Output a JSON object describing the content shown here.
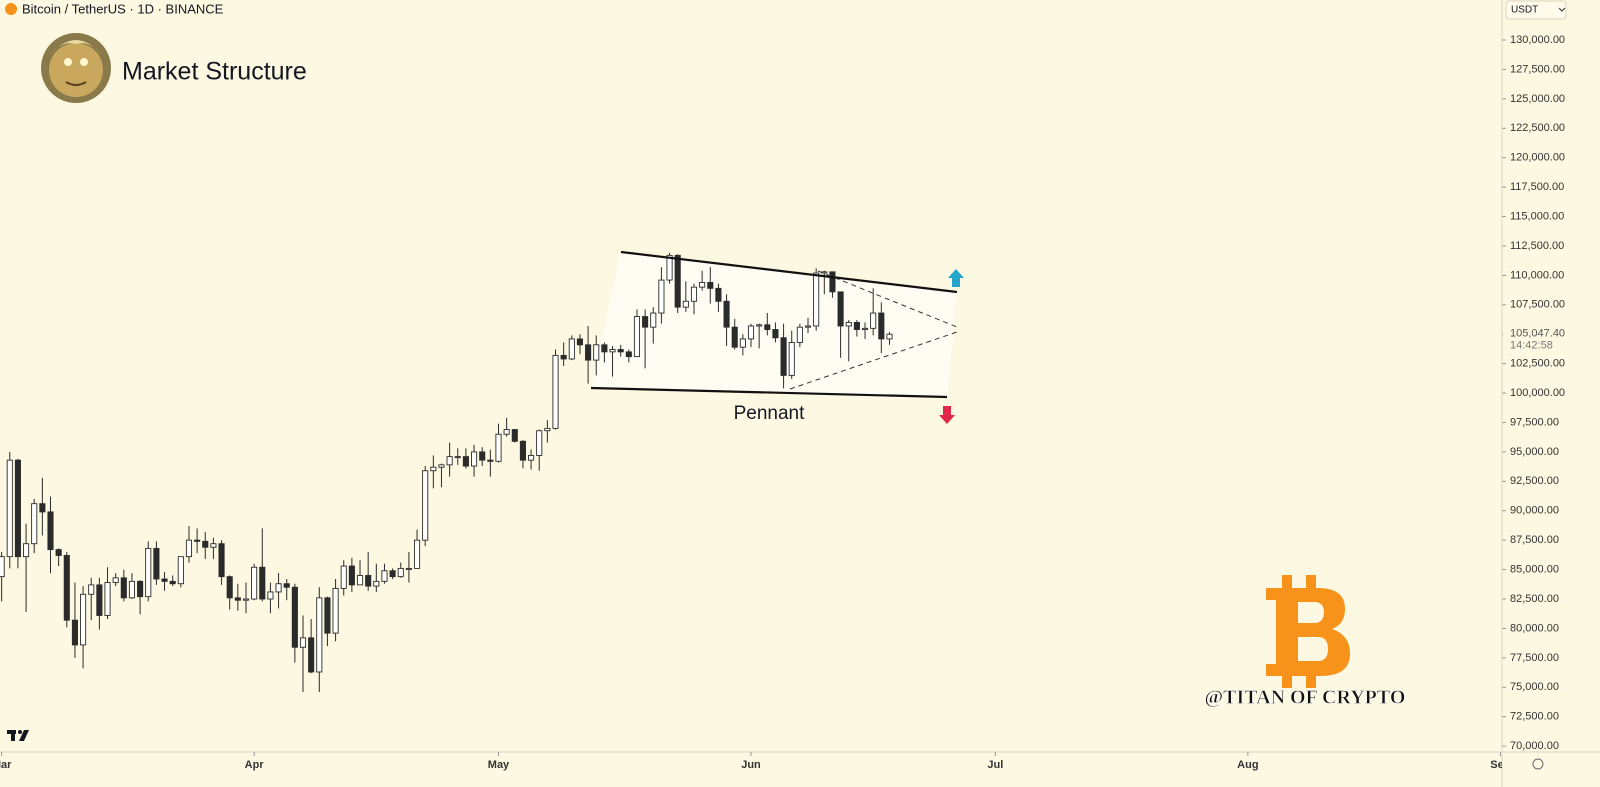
{
  "header": {
    "symbol": "Bitcoin / TetherUS · 1D · BINANCE",
    "currency": "USDT"
  },
  "chart_data": {
    "type": "candlestick",
    "title": "Market Structure",
    "annotation": "Pennant",
    "watermark": "@TITAN OF CRYPTO",
    "up_color": "#ffffff",
    "down_color": "#2b2b2b",
    "xlim": [
      -0.2,
      184.2
    ],
    "xticks": [
      {
        "value": 0,
        "label": "Mar"
      },
      {
        "value": 31,
        "label": "Apr"
      },
      {
        "value": 61,
        "label": "May"
      },
      {
        "value": 92,
        "label": "Jun"
      },
      {
        "value": 122,
        "label": "Jul"
      },
      {
        "value": 153,
        "label": "Aug"
      },
      {
        "value": 184,
        "label": "Sep"
      }
    ],
    "ylim": [
      69500,
      133400
    ],
    "yticks": [
      {
        "value": 70000,
        "label": "70,000.00"
      },
      {
        "value": 72500,
        "label": "72,500.00"
      },
      {
        "value": 75000,
        "label": "75,000.00"
      },
      {
        "value": 77500,
        "label": "77,500.00"
      },
      {
        "value": 80000,
        "label": "80,000.00"
      },
      {
        "value": 82500,
        "label": "82,500.00"
      },
      {
        "value": 85000,
        "label": "85,000.00"
      },
      {
        "value": 87500,
        "label": "87,500.00"
      },
      {
        "value": 90000,
        "label": "90,000.00"
      },
      {
        "value": 92500,
        "label": "92,500.00"
      },
      {
        "value": 95000,
        "label": "95,000.00"
      },
      {
        "value": 97500,
        "label": "97,500.00"
      },
      {
        "value": 100000,
        "label": "100,000.00"
      },
      {
        "value": 102500,
        "label": "102,500.00"
      },
      {
        "value": 105000,
        "label": "105,000.00"
      },
      {
        "value": 107500,
        "label": "107,500.00"
      },
      {
        "value": 110000,
        "label": "110,000.00"
      },
      {
        "value": 112500,
        "label": "112,500.00"
      },
      {
        "value": 115000,
        "label": "115,000.00"
      },
      {
        "value": 117500,
        "label": "117,500.00"
      },
      {
        "value": 120000,
        "label": "120,000.00"
      },
      {
        "value": 122500,
        "label": "122,500.00"
      },
      {
        "value": 125000,
        "label": "125,000.00"
      },
      {
        "value": 127500,
        "label": "127,500.00"
      },
      {
        "value": 130000,
        "label": "130,000.00"
      }
    ],
    "last_price": {
      "value": 105047.4,
      "label": "105,047.40"
    },
    "countdown": "14:42:58",
    "x": [
      0,
      1,
      2,
      3,
      4,
      5,
      6,
      7,
      8,
      9,
      10,
      11,
      12,
      13,
      14,
      15,
      16,
      17,
      18,
      19,
      20,
      21,
      22,
      23,
      24,
      25,
      26,
      27,
      28,
      29,
      30,
      31,
      32,
      33,
      34,
      35,
      36,
      37,
      38,
      39,
      40,
      41,
      42,
      43,
      44,
      45,
      46,
      47,
      48,
      49,
      50,
      51,
      52,
      53,
      54,
      55,
      56,
      57,
      58,
      59,
      60,
      61,
      62,
      63,
      64,
      65,
      66,
      67,
      68,
      69,
      70,
      71,
      72,
      73,
      74,
      75,
      76,
      77,
      78,
      79,
      80,
      81,
      82,
      83,
      84,
      85,
      86,
      87,
      88,
      89,
      90,
      91,
      92,
      93,
      94,
      95,
      96,
      97,
      98,
      99,
      100,
      101,
      102,
      103,
      104,
      105,
      106,
      107,
      108,
      109
    ],
    "open": [
      84400,
      86100,
      94300,
      86100,
      87200,
      90600,
      89900,
      86700,
      86200,
      80700,
      78600,
      82900,
      83700,
      81100,
      83900,
      84300,
      82600,
      84000,
      82700,
      86800,
      84200,
      84000,
      83800,
      86100,
      87500,
      87400,
      86900,
      87200,
      84400,
      82600,
      82400,
      82500,
      85200,
      82500,
      83100,
      83800,
      83500,
      78400,
      79200,
      76300,
      82600,
      79600,
      83400,
      85300,
      83700,
      84500,
      83600,
      84000,
      84900,
      84400,
      85100,
      85100,
      87500,
      93400,
      93700,
      93900,
      94600,
      94600,
      93800,
      95000,
      94300,
      94200,
      96500,
      96900,
      95900,
      94300,
      94700,
      96800,
      97000,
      103200,
      102900,
      104600,
      104100,
      102800,
      104100,
      103500,
      103700,
      103500,
      103100,
      106500,
      105600,
      106800,
      109600,
      111700,
      107300,
      107800,
      109000,
      109400,
      108900,
      107800,
      105600,
      103900,
      104600,
      105700,
      105800,
      105400,
      104700,
      101500,
      104300,
      105600,
      105700,
      110200,
      110300,
      108600,
      105700,
      106000,
      105400,
      105500,
      106800,
      104600
    ],
    "high": [
      86500,
      95000,
      94400,
      88900,
      91000,
      92800,
      91200,
      86800,
      86500,
      83900,
      83600,
      84300,
      84300,
      85200,
      84700,
      85000,
      84700,
      84100,
      87400,
      87400,
      84800,
      84500,
      86100,
      88700,
      88500,
      88200,
      87700,
      87500,
      84500,
      83800,
      83900,
      85500,
      88500,
      83900,
      84700,
      84200,
      83800,
      81100,
      80800,
      83500,
      82700,
      84200,
      85800,
      86000,
      85800,
      86500,
      85500,
      85500,
      85100,
      85600,
      86500,
      88400,
      93800,
      94700,
      94000,
      95800,
      95300,
      95300,
      95600,
      95400,
      95200,
      97400,
      97900,
      96900,
      96000,
      95200,
      96900,
      97700,
      103700,
      104300,
      104900,
      105000,
      105700,
      104900,
      104300,
      104000,
      104100,
      103700,
      107100,
      107100,
      107300,
      110700,
      111900,
      111800,
      109500,
      109300,
      110400,
      110700,
      109300,
      108400,
      106300,
      105000,
      105900,
      105900,
      106800,
      106000,
      105900,
      105300,
      105900,
      106400,
      110600,
      110400,
      110300,
      108600,
      106200,
      106200,
      106000,
      108900,
      107700,
      105200
    ],
    "low": [
      82300,
      85100,
      85100,
      81400,
      86400,
      87900,
      84700,
      85300,
      80100,
      77500,
      76600,
      80700,
      79900,
      80800,
      83600,
      82300,
      82500,
      81200,
      82300,
      83700,
      83200,
      83600,
      83500,
      85600,
      86400,
      85900,
      85900,
      83700,
      81600,
      81500,
      81300,
      82400,
      82300,
      81300,
      81700,
      82400,
      77100,
      74600,
      76200,
      74600,
      78500,
      78900,
      82800,
      83100,
      83700,
      83200,
      83100,
      83800,
      84200,
      84300,
      83900,
      85100,
      87000,
      91900,
      92000,
      92900,
      93900,
      93600,
      92900,
      93800,
      92900,
      94100,
      96300,
      95800,
      93600,
      93500,
      93400,
      95800,
      96900,
      102300,
      102800,
      103300,
      100800,
      101500,
      102600,
      101400,
      103100,
      102600,
      103100,
      102100,
      104200,
      105900,
      109300,
      106800,
      106900,
      106700,
      108700,
      107600,
      106900,
      104000,
      103700,
      103200,
      103900,
      103800,
      104900,
      104300,
      100400,
      101200,
      103900,
      105100,
      105300,
      108400,
      108100,
      103000,
      102700,
      104800,
      104600,
      104900,
      103400,
      104100
    ],
    "close": [
      86100,
      94300,
      86100,
      87200,
      90600,
      89900,
      86700,
      86200,
      80700,
      78600,
      82900,
      83700,
      81100,
      83900,
      84300,
      82600,
      84000,
      82700,
      86800,
      84200,
      84000,
      83800,
      86100,
      87500,
      87400,
      86900,
      87200,
      84400,
      82600,
      82400,
      82500,
      85200,
      82500,
      83100,
      83800,
      83500,
      78400,
      79200,
      76300,
      82600,
      79600,
      83400,
      85300,
      83700,
      84500,
      83600,
      84000,
      84900,
      84400,
      85100,
      85100,
      87500,
      93400,
      93700,
      93900,
      94600,
      94600,
      93800,
      95000,
      94300,
      94200,
      96500,
      96900,
      95900,
      94300,
      94700,
      96800,
      97000,
      103200,
      102900,
      104600,
      104100,
      102800,
      104100,
      103500,
      103700,
      103500,
      103100,
      106500,
      105600,
      106800,
      109600,
      111700,
      107300,
      107800,
      109000,
      109400,
      108900,
      107800,
      105600,
      103900,
      104600,
      105700,
      105800,
      105400,
      104700,
      101500,
      104300,
      105600,
      105700,
      110200,
      110300,
      108600,
      105700,
      106000,
      105400,
      105500,
      106800,
      104600,
      105000
    ]
  }
}
